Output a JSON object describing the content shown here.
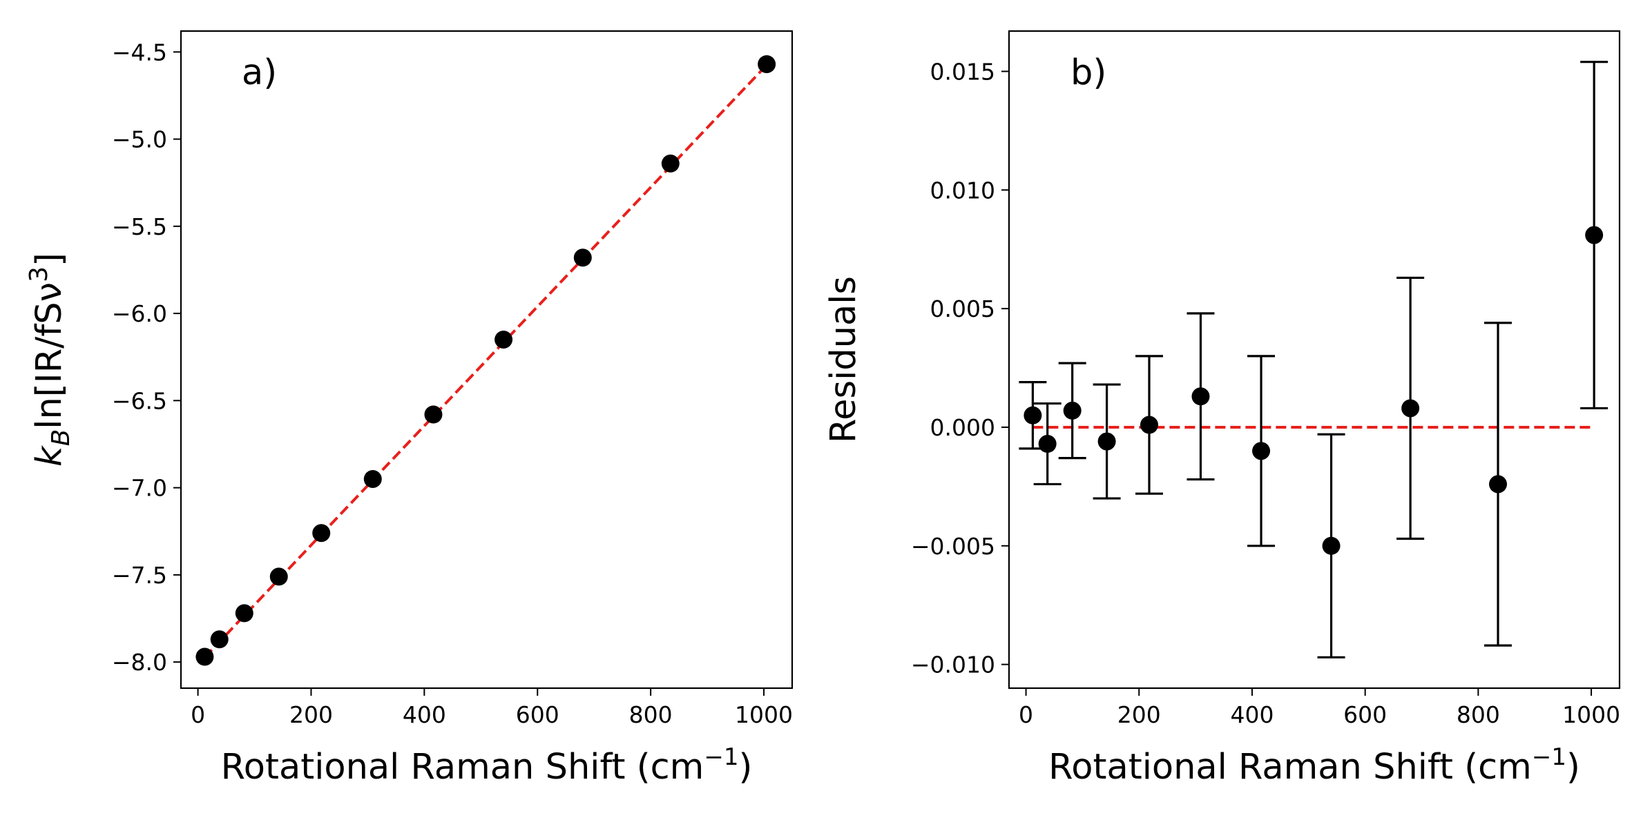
{
  "chart_data": [
    {
      "type": "scatter",
      "panel_label": "a)",
      "xlabel": "Rotational Raman Shift (cm",
      "xlabel_sup": "−1",
      "xlabel_end": ")",
      "ylabel": "k",
      "ylabel_sub": "B",
      "ylabel_mid": "ln[IR/fSν",
      "ylabel_sup": "3",
      "ylabel_end": "]",
      "xlim": [
        -30,
        1050
      ],
      "ylim": [
        -8.15,
        -4.38
      ],
      "xticks": [
        0,
        200,
        400,
        600,
        800,
        1000
      ],
      "xtick_labels": [
        "0",
        "200",
        "400",
        "600",
        "800",
        "1000"
      ],
      "yticks": [
        -8.0,
        -7.5,
        -7.0,
        -6.5,
        -6.0,
        -5.5,
        -5.0,
        -4.5
      ],
      "ytick_labels": [
        "−8.0",
        "−7.5",
        "−7.0",
        "−6.5",
        "−6.0",
        "−5.5",
        "−5.0",
        "−4.5"
      ],
      "series": [
        {
          "name": "data",
          "marker": "circle",
          "color": "#000000",
          "x": [
            12,
            38,
            82,
            143,
            218,
            309,
            416,
            540,
            680,
            835,
            1005
          ],
          "y": [
            -7.97,
            -7.87,
            -7.72,
            -7.51,
            -7.26,
            -6.95,
            -6.58,
            -6.15,
            -5.68,
            -5.14,
            -4.57
          ]
        },
        {
          "name": "fit",
          "style": "dashed",
          "color": "#e8201c",
          "x": [
            12,
            1005
          ],
          "y": [
            -7.973,
            -4.575
          ]
        }
      ]
    },
    {
      "type": "scatter",
      "panel_label": "b)",
      "xlabel": "Rotational Raman Shift (cm",
      "xlabel_sup": "−1",
      "xlabel_end": ")",
      "ylabel": "Residuals",
      "xlim": [
        -30,
        1050
      ],
      "ylim": [
        -0.011,
        0.0167
      ],
      "xticks": [
        0,
        200,
        400,
        600,
        800,
        1000
      ],
      "xtick_labels": [
        "0",
        "200",
        "400",
        "600",
        "800",
        "1000"
      ],
      "yticks": [
        -0.01,
        -0.005,
        0.0,
        0.005,
        0.01,
        0.015
      ],
      "ytick_labels": [
        "−0.010",
        "−0.005",
        "0.000",
        "0.005",
        "0.010",
        "0.015"
      ],
      "series": [
        {
          "name": "residuals",
          "marker": "circle",
          "color": "#000000",
          "x": [
            12,
            38,
            82,
            143,
            218,
            309,
            416,
            540,
            680,
            835,
            1005
          ],
          "y": [
            0.0005,
            -0.0007,
            0.0007,
            -0.0006,
            0.0001,
            0.0013,
            -0.001,
            -0.005,
            0.0008,
            -0.0024,
            0.0081
          ],
          "yerr": [
            0.0014,
            0.0017,
            0.002,
            0.0024,
            0.0029,
            0.0035,
            0.004,
            0.0047,
            0.0055,
            0.0068,
            0.0073
          ]
        },
        {
          "name": "zero line",
          "style": "dashed",
          "color": "#e8201c",
          "x": [
            12,
            1005
          ],
          "y": [
            0,
            0
          ]
        }
      ]
    }
  ]
}
